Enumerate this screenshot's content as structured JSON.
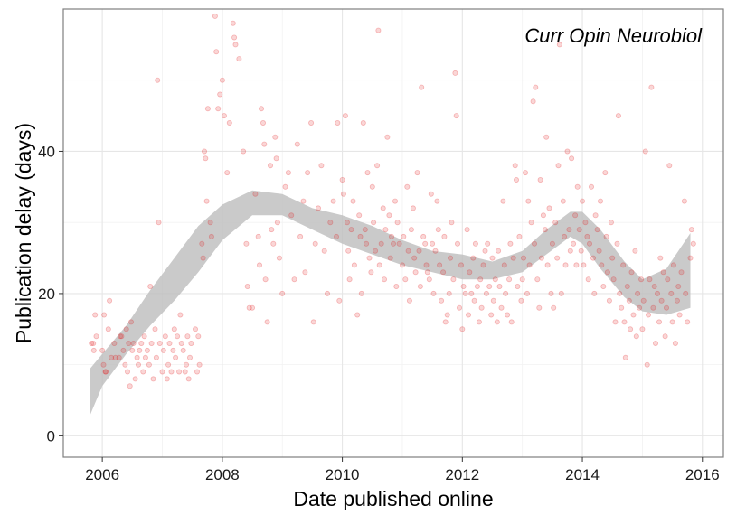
{
  "chart_data": {
    "type": "scatter",
    "title": "",
    "annotation": "Curr Opin Neurobiol",
    "xlabel": "Date published online",
    "ylabel": "Publication delay (days)",
    "xlim": [
      2005.35,
      2016.35
    ],
    "ylim": [
      -3,
      60
    ],
    "x_ticks": [
      2006,
      2008,
      2010,
      2012,
      2014,
      2016
    ],
    "y_ticks": [
      0,
      20,
      40
    ],
    "grid": true,
    "point_color": "#e31a1c",
    "point_opacity": 0.18,
    "smooth_band_color": "#bdbdbd",
    "smooth_band": {
      "x": [
        2005.8,
        2006.0,
        2006.4,
        2006.8,
        2007.2,
        2007.6,
        2008.0,
        2008.5,
        2009.0,
        2009.5,
        2010.0,
        2010.5,
        2011.0,
        2011.5,
        2012.0,
        2012.5,
        2013.0,
        2013.4,
        2013.8,
        2014.0,
        2014.3,
        2014.7,
        2015.0,
        2015.4,
        2015.8
      ],
      "lower": [
        3.0,
        7.0,
        11.5,
        15.5,
        19.0,
        23.0,
        27.5,
        31.0,
        31.0,
        29.0,
        27.0,
        25.5,
        24.0,
        23.0,
        22.0,
        22.0,
        23.0,
        25.5,
        28.0,
        27.0,
        23.5,
        19.5,
        17.5,
        17.0,
        18.0
      ],
      "upper": [
        9.5,
        11.5,
        15.5,
        20.5,
        25.0,
        29.5,
        32.5,
        34.5,
        34.0,
        32.0,
        31.0,
        29.5,
        27.5,
        26.0,
        25.5,
        24.5,
        26.0,
        29.0,
        31.5,
        31.5,
        29.0,
        24.5,
        22.0,
        23.5,
        28.5
      ]
    },
    "points": [
      [
        2005.82,
        13
      ],
      [
        2005.85,
        13
      ],
      [
        2005.86,
        12
      ],
      [
        2005.88,
        17
      ],
      [
        2005.9,
        14
      ],
      [
        2006.0,
        12
      ],
      [
        2006.02,
        10
      ],
      [
        2006.03,
        17
      ],
      [
        2006.05,
        9
      ],
      [
        2006.06,
        9
      ],
      [
        2006.1,
        15
      ],
      [
        2006.12,
        19
      ],
      [
        2006.15,
        11
      ],
      [
        2006.2,
        13
      ],
      [
        2006.22,
        11
      ],
      [
        2006.28,
        11
      ],
      [
        2006.3,
        14
      ],
      [
        2006.32,
        14
      ],
      [
        2006.35,
        12
      ],
      [
        2006.38,
        10
      ],
      [
        2006.4,
        15
      ],
      [
        2006.42,
        9
      ],
      [
        2006.44,
        13
      ],
      [
        2006.46,
        7
      ],
      [
        2006.48,
        16
      ],
      [
        2006.5,
        12
      ],
      [
        2006.52,
        13
      ],
      [
        2006.55,
        8
      ],
      [
        2006.58,
        11
      ],
      [
        2006.6,
        10
      ],
      [
        2006.62,
        12
      ],
      [
        2006.65,
        13
      ],
      [
        2006.68,
        9
      ],
      [
        2006.7,
        14
      ],
      [
        2006.72,
        11
      ],
      [
        2006.75,
        12
      ],
      [
        2006.78,
        10
      ],
      [
        2006.8,
        21
      ],
      [
        2006.82,
        13
      ],
      [
        2006.85,
        8
      ],
      [
        2006.88,
        15
      ],
      [
        2006.9,
        11
      ],
      [
        2006.92,
        50
      ],
      [
        2006.94,
        30
      ],
      [
        2006.96,
        13
      ],
      [
        2007.0,
        9
      ],
      [
        2007.02,
        12
      ],
      [
        2007.05,
        14
      ],
      [
        2007.08,
        8
      ],
      [
        2007.1,
        10
      ],
      [
        2007.12,
        13
      ],
      [
        2007.15,
        9
      ],
      [
        2007.18,
        12
      ],
      [
        2007.2,
        15
      ],
      [
        2007.22,
        11
      ],
      [
        2007.25,
        14
      ],
      [
        2007.28,
        9
      ],
      [
        2007.3,
        17
      ],
      [
        2007.32,
        13
      ],
      [
        2007.35,
        12
      ],
      [
        2007.38,
        9
      ],
      [
        2007.4,
        10
      ],
      [
        2007.42,
        14
      ],
      [
        2007.44,
        8
      ],
      [
        2007.46,
        11
      ],
      [
        2007.48,
        13
      ],
      [
        2007.55,
        15
      ],
      [
        2007.58,
        9
      ],
      [
        2007.6,
        14
      ],
      [
        2007.62,
        10
      ],
      [
        2007.66,
        27
      ],
      [
        2007.68,
        25
      ],
      [
        2007.7,
        40
      ],
      [
        2007.72,
        39
      ],
      [
        2007.74,
        33
      ],
      [
        2007.76,
        46
      ],
      [
        2007.8,
        30
      ],
      [
        2007.82,
        28
      ],
      [
        2007.88,
        59
      ],
      [
        2007.9,
        54
      ],
      [
        2007.93,
        46
      ],
      [
        2007.96,
        48
      ],
      [
        2008.0,
        50
      ],
      [
        2008.03,
        45
      ],
      [
        2008.08,
        37
      ],
      [
        2008.12,
        44
      ],
      [
        2008.18,
        58
      ],
      [
        2008.2,
        56
      ],
      [
        2008.22,
        55
      ],
      [
        2008.28,
        53
      ],
      [
        2008.35,
        40
      ],
      [
        2008.4,
        27
      ],
      [
        2008.42,
        21
      ],
      [
        2008.45,
        18
      ],
      [
        2008.5,
        18
      ],
      [
        2008.55,
        34
      ],
      [
        2008.6,
        28
      ],
      [
        2008.62,
        24
      ],
      [
        2008.65,
        46
      ],
      [
        2008.68,
        44
      ],
      [
        2008.7,
        41
      ],
      [
        2008.72,
        22
      ],
      [
        2008.75,
        16
      ],
      [
        2008.8,
        38
      ],
      [
        2008.82,
        29
      ],
      [
        2008.85,
        27
      ],
      [
        2008.88,
        42
      ],
      [
        2008.9,
        39
      ],
      [
        2008.92,
        30
      ],
      [
        2008.95,
        25
      ],
      [
        2009.0,
        20
      ],
      [
        2009.05,
        35
      ],
      [
        2009.1,
        37
      ],
      [
        2009.15,
        31
      ],
      [
        2009.2,
        22
      ],
      [
        2009.25,
        41
      ],
      [
        2009.3,
        28
      ],
      [
        2009.35,
        33
      ],
      [
        2009.38,
        23
      ],
      [
        2009.42,
        37
      ],
      [
        2009.48,
        44
      ],
      [
        2009.52,
        16
      ],
      [
        2009.55,
        27
      ],
      [
        2009.6,
        32
      ],
      [
        2009.65,
        38
      ],
      [
        2009.7,
        26
      ],
      [
        2009.75,
        20
      ],
      [
        2009.8,
        30
      ],
      [
        2009.85,
        33
      ],
      [
        2009.9,
        28
      ],
      [
        2009.92,
        44
      ],
      [
        2009.95,
        19
      ],
      [
        2010.0,
        36
      ],
      [
        2010.02,
        34
      ],
      [
        2010.05,
        45
      ],
      [
        2010.08,
        30
      ],
      [
        2010.1,
        26
      ],
      [
        2010.12,
        22
      ],
      [
        2010.15,
        29
      ],
      [
        2010.18,
        33
      ],
      [
        2010.2,
        24
      ],
      [
        2010.25,
        17
      ],
      [
        2010.28,
        31
      ],
      [
        2010.3,
        28
      ],
      [
        2010.32,
        20
      ],
      [
        2010.35,
        44
      ],
      [
        2010.38,
        29
      ],
      [
        2010.4,
        27
      ],
      [
        2010.42,
        37
      ],
      [
        2010.45,
        25
      ],
      [
        2010.48,
        23
      ],
      [
        2010.5,
        35
      ],
      [
        2010.52,
        30
      ],
      [
        2010.55,
        26
      ],
      [
        2010.58,
        38
      ],
      [
        2010.6,
        57
      ],
      [
        2010.62,
        24
      ],
      [
        2010.65,
        27
      ],
      [
        2010.68,
        32
      ],
      [
        2010.7,
        22
      ],
      [
        2010.72,
        29
      ],
      [
        2010.75,
        42
      ],
      [
        2010.78,
        31
      ],
      [
        2010.8,
        25
      ],
      [
        2010.82,
        28
      ],
      [
        2010.85,
        27
      ],
      [
        2010.88,
        33
      ],
      [
        2010.9,
        21
      ],
      [
        2010.92,
        30
      ],
      [
        2010.95,
        27
      ],
      [
        2011.0,
        24
      ],
      [
        2011.02,
        28
      ],
      [
        2011.05,
        22
      ],
      [
        2011.08,
        35
      ],
      [
        2011.1,
        26
      ],
      [
        2011.12,
        19
      ],
      [
        2011.15,
        29
      ],
      [
        2011.18,
        32
      ],
      [
        2011.2,
        25
      ],
      [
        2011.22,
        23
      ],
      [
        2011.25,
        37
      ],
      [
        2011.28,
        26
      ],
      [
        2011.3,
        21
      ],
      [
        2011.32,
        49
      ],
      [
        2011.35,
        28
      ],
      [
        2011.38,
        27
      ],
      [
        2011.4,
        24
      ],
      [
        2011.42,
        23
      ],
      [
        2011.45,
        22
      ],
      [
        2011.48,
        34
      ],
      [
        2011.5,
        27
      ],
      [
        2011.52,
        20
      ],
      [
        2011.55,
        26
      ],
      [
        2011.58,
        33
      ],
      [
        2011.6,
        29
      ],
      [
        2011.62,
        24
      ],
      [
        2011.65,
        19
      ],
      [
        2011.68,
        23
      ],
      [
        2011.7,
        28
      ],
      [
        2011.72,
        16
      ],
      [
        2011.75,
        17
      ],
      [
        2011.78,
        20
      ],
      [
        2011.8,
        25
      ],
      [
        2011.82,
        30
      ],
      [
        2011.85,
        22
      ],
      [
        2011.88,
        51
      ],
      [
        2011.9,
        45
      ],
      [
        2011.92,
        27
      ],
      [
        2011.95,
        18
      ],
      [
        2011.98,
        24
      ],
      [
        2012.0,
        15
      ],
      [
        2012.02,
        21
      ],
      [
        2012.05,
        20
      ],
      [
        2012.08,
        29
      ],
      [
        2012.1,
        17
      ],
      [
        2012.12,
        23
      ],
      [
        2012.15,
        20
      ],
      [
        2012.18,
        25
      ],
      [
        2012.2,
        19
      ],
      [
        2012.22,
        27
      ],
      [
        2012.25,
        21
      ],
      [
        2012.28,
        16
      ],
      [
        2012.3,
        22
      ],
      [
        2012.32,
        18
      ],
      [
        2012.35,
        24
      ],
      [
        2012.38,
        26
      ],
      [
        2012.4,
        20
      ],
      [
        2012.42,
        27
      ],
      [
        2012.45,
        21
      ],
      [
        2012.48,
        17
      ],
      [
        2012.5,
        25
      ],
      [
        2012.52,
        19
      ],
      [
        2012.55,
        22
      ],
      [
        2012.58,
        16
      ],
      [
        2012.6,
        26
      ],
      [
        2012.62,
        21
      ],
      [
        2012.65,
        18
      ],
      [
        2012.68,
        33
      ],
      [
        2012.7,
        24
      ],
      [
        2012.72,
        20
      ],
      [
        2012.75,
        17
      ],
      [
        2012.78,
        22
      ],
      [
        2012.8,
        27
      ],
      [
        2012.82,
        16
      ],
      [
        2012.85,
        25
      ],
      [
        2012.88,
        38
      ],
      [
        2012.9,
        36
      ],
      [
        2012.92,
        21
      ],
      [
        2012.95,
        28
      ],
      [
        2012.98,
        19
      ],
      [
        2013.0,
        22
      ],
      [
        2013.02,
        25
      ],
      [
        2013.05,
        37
      ],
      [
        2013.08,
        20
      ],
      [
        2013.1,
        33
      ],
      [
        2013.12,
        24
      ],
      [
        2013.15,
        30
      ],
      [
        2013.18,
        47
      ],
      [
        2013.2,
        27
      ],
      [
        2013.22,
        49
      ],
      [
        2013.25,
        22
      ],
      [
        2013.28,
        18
      ],
      [
        2013.3,
        36
      ],
      [
        2013.32,
        25
      ],
      [
        2013.35,
        31
      ],
      [
        2013.38,
        29
      ],
      [
        2013.4,
        42
      ],
      [
        2013.42,
        24
      ],
      [
        2013.45,
        32
      ],
      [
        2013.48,
        20
      ],
      [
        2013.5,
        27
      ],
      [
        2013.52,
        18
      ],
      [
        2013.55,
        30
      ],
      [
        2013.58,
        25
      ],
      [
        2013.6,
        38
      ],
      [
        2013.62,
        55
      ],
      [
        2013.65,
        20
      ],
      [
        2013.68,
        33
      ],
      [
        2013.7,
        28
      ],
      [
        2013.72,
        24
      ],
      [
        2013.75,
        40
      ],
      [
        2013.78,
        29
      ],
      [
        2013.8,
        26
      ],
      [
        2013.82,
        39
      ],
      [
        2013.85,
        27
      ],
      [
        2013.88,
        31
      ],
      [
        2013.9,
        24
      ],
      [
        2013.92,
        35
      ],
      [
        2013.95,
        29
      ],
      [
        2013.98,
        26
      ],
      [
        2014.0,
        33
      ],
      [
        2014.02,
        24
      ],
      [
        2014.05,
        30
      ],
      [
        2014.08,
        28
      ],
      [
        2014.1,
        22
      ],
      [
        2014.12,
        27
      ],
      [
        2014.15,
        35
      ],
      [
        2014.18,
        25
      ],
      [
        2014.2,
        20
      ],
      [
        2014.22,
        31
      ],
      [
        2014.25,
        29
      ],
      [
        2014.28,
        26
      ],
      [
        2014.3,
        33
      ],
      [
        2014.32,
        24
      ],
      [
        2014.35,
        21
      ],
      [
        2014.38,
        37
      ],
      [
        2014.4,
        28
      ],
      [
        2014.42,
        23
      ],
      [
        2014.45,
        19
      ],
      [
        2014.48,
        30
      ],
      [
        2014.5,
        25
      ],
      [
        2014.52,
        22
      ],
      [
        2014.55,
        16
      ],
      [
        2014.58,
        27
      ],
      [
        2014.6,
        45
      ],
      [
        2014.62,
        20
      ],
      [
        2014.65,
        18
      ],
      [
        2014.68,
        24
      ],
      [
        2014.7,
        16
      ],
      [
        2014.72,
        11
      ],
      [
        2014.75,
        21
      ],
      [
        2014.78,
        19
      ],
      [
        2014.8,
        15
      ],
      [
        2014.82,
        23
      ],
      [
        2014.85,
        17
      ],
      [
        2014.88,
        26
      ],
      [
        2014.9,
        14
      ],
      [
        2014.92,
        20
      ],
      [
        2014.95,
        18
      ],
      [
        2014.98,
        22
      ],
      [
        2015.0,
        15
      ],
      [
        2015.02,
        19
      ],
      [
        2015.05,
        40
      ],
      [
        2015.08,
        10
      ],
      [
        2015.1,
        17
      ],
      [
        2015.12,
        22
      ],
      [
        2015.15,
        49
      ],
      [
        2015.18,
        18
      ],
      [
        2015.2,
        21
      ],
      [
        2015.22,
        13
      ],
      [
        2015.25,
        20
      ],
      [
        2015.28,
        16
      ],
      [
        2015.3,
        25
      ],
      [
        2015.32,
        19
      ],
      [
        2015.35,
        23
      ],
      [
        2015.38,
        14
      ],
      [
        2015.4,
        18
      ],
      [
        2015.42,
        22
      ],
      [
        2015.45,
        38
      ],
      [
        2015.48,
        20
      ],
      [
        2015.5,
        16
      ],
      [
        2015.52,
        24
      ],
      [
        2015.55,
        13
      ],
      [
        2015.58,
        19
      ],
      [
        2015.6,
        21
      ],
      [
        2015.62,
        17
      ],
      [
        2015.65,
        23
      ],
      [
        2015.7,
        33
      ],
      [
        2015.72,
        20
      ],
      [
        2015.75,
        16
      ],
      [
        2015.8,
        25
      ],
      [
        2015.82,
        29
      ],
      [
        2015.85,
        27
      ]
    ]
  }
}
